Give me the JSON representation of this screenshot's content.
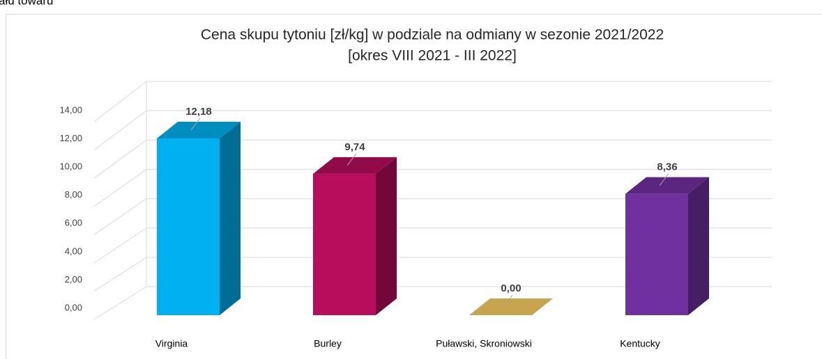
{
  "caption": "ału towaru",
  "chart_data": {
    "type": "bar3d",
    "title": "Cena skupu tytoniu [zł/kg] w podziale na odmiany w sezonie 2021/2022",
    "subtitle": "[okres VIII 2021 - III 2022]",
    "categories": [
      "Virginia",
      "Burley",
      "Puławski, Skroniowski",
      "Kentucky"
    ],
    "values": [
      12.18,
      9.74,
      0,
      8.36
    ],
    "value_labels": [
      "12,18",
      "9,74",
      "0,00",
      "8,36"
    ],
    "colors": [
      "#00b0f0",
      "#b80c5c",
      "#c6a54e",
      "#7030a0"
    ],
    "ylim": [
      0,
      14
    ],
    "yticks": [
      {
        "value": 0,
        "label": "0,00"
      },
      {
        "value": 2,
        "label": "2,00"
      },
      {
        "value": 4,
        "label": "4,00"
      },
      {
        "value": 6,
        "label": "6,00"
      },
      {
        "value": 8,
        "label": "8,00"
      },
      {
        "value": 10,
        "label": "10,00"
      },
      {
        "value": 12,
        "label": "12,00"
      },
      {
        "value": 14,
        "label": "14,00"
      }
    ],
    "grid": true
  }
}
